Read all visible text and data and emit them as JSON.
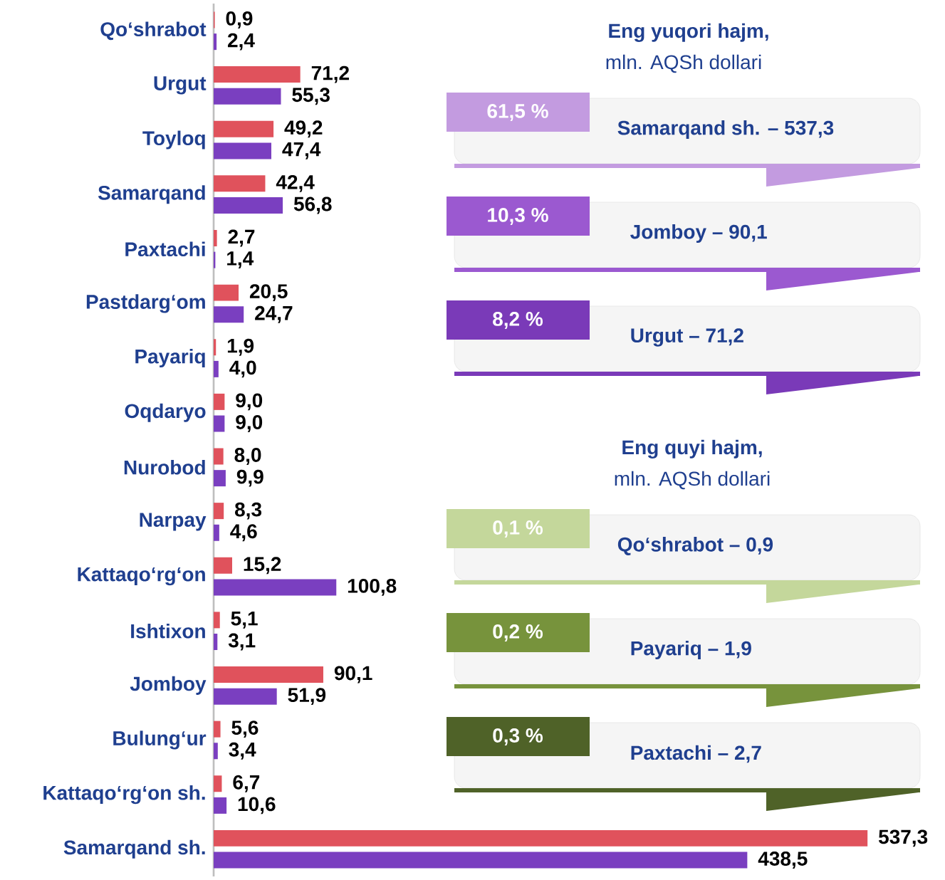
{
  "chart_data": [
    {
      "type": "bar",
      "orientation": "horizontal",
      "categories": [
        "Qo‘shrabot",
        "Urgut",
        "Toyloq",
        "Samarqand",
        "Paxtachi",
        "Pastdarg‘om",
        "Payariq",
        "Oqdaryo",
        "Nurobod",
        "Narpay",
        "Kattaqo‘rg‘on",
        "Ishtixon",
        "Jomboy",
        "Bulung‘ur",
        "Kattaqo‘rg‘on sh.",
        "Samarqand sh."
      ],
      "series": [
        {
          "color": "#e0525c",
          "values": [
            0.9,
            71.2,
            49.2,
            42.4,
            2.7,
            20.5,
            1.9,
            9.0,
            8.0,
            8.3,
            15.2,
            5.1,
            90.1,
            5.6,
            6.7,
            537.3
          ],
          "value_labels": [
            "0,9",
            "71,2",
            "49,2",
            "42,4",
            "2,7",
            "20,5",
            "1,9",
            "9,0",
            "8,0",
            "8,3",
            "15,2",
            "5,1",
            "90,1",
            "5,6",
            "6,7",
            "537,3"
          ]
        },
        {
          "color": "#7a3fc0",
          "values": [
            2.4,
            55.3,
            47.4,
            56.8,
            1.4,
            24.7,
            4.0,
            9.0,
            9.9,
            4.6,
            100.8,
            3.1,
            51.9,
            3.4,
            10.6,
            438.5
          ],
          "value_labels": [
            "2,4",
            "55,3",
            "47,4",
            "56,8",
            "1,4",
            "24,7",
            "4,0",
            "9,0",
            "9,9",
            "4,6",
            "100,8",
            "3,1",
            "51,9",
            "3,4",
            "10,6",
            "438,5"
          ]
        }
      ]
    },
    {
      "type": "other",
      "annotations": [
        "Eng yuqori hajm,",
        "mln. AQSh dollari",
        "61,5 %",
        "Samarqand sh. – 537,3",
        "10,3 %",
        "Jomboy – 90,1",
        "8,2 %",
        "Urgut – 71,2",
        "Eng quyi hajm,",
        "mln. AQSh dollari",
        "0,1 %",
        "Qo‘shrabot – 0,9",
        "0,2 %",
        "Payariq – 1,9",
        "0,3 %",
        "Paxtachi – 2,7"
      ],
      "colors": [
        "#c39be0",
        "#9b59d0",
        "#7a3ab8",
        "#c4d79b",
        "#77933c",
        "#4f6228"
      ]
    }
  ]
}
